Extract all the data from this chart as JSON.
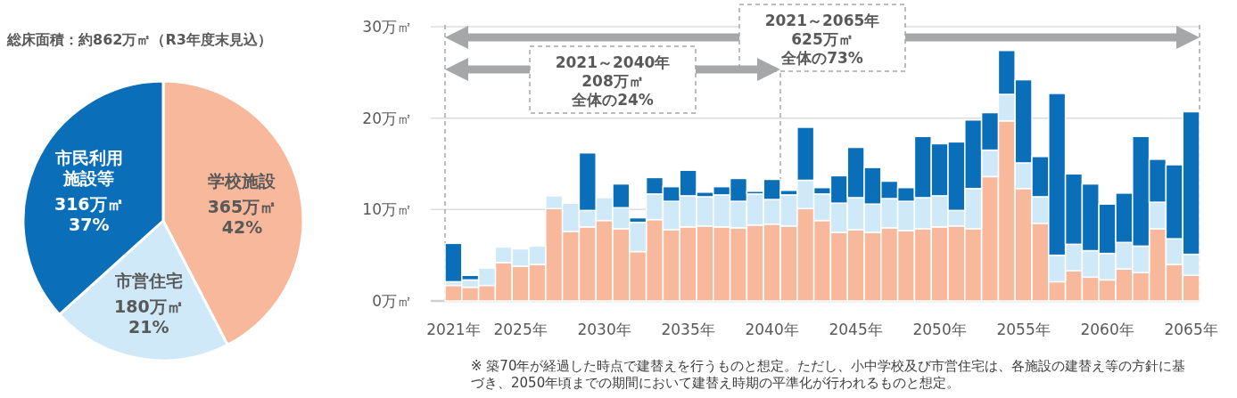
{
  "chart_data": [
    {
      "type": "pie",
      "title": "総床面積：約862万㎡（R3年度末見込）",
      "categories": [
        "学校施設",
        "市営住宅",
        "市民利用施設等"
      ],
      "values": [
        365,
        180,
        316
      ],
      "value_labels": [
        "365万㎡ 42%",
        "180万㎡ 21%",
        "316万㎡ 37%"
      ],
      "colors": [
        "#f8b89b",
        "#cfe9f9",
        "#0a6fb8"
      ]
    },
    {
      "type": "bar",
      "stacked": true,
      "x": [
        2021,
        2022,
        2023,
        2024,
        2025,
        2026,
        2027,
        2028,
        2029,
        2030,
        2031,
        2032,
        2033,
        2034,
        2035,
        2036,
        2037,
        2038,
        2039,
        2040,
        2041,
        2042,
        2043,
        2044,
        2045,
        2046,
        2047,
        2048,
        2049,
        2050,
        2051,
        2052,
        2053,
        2054,
        2055,
        2056,
        2057,
        2058,
        2059,
        2060,
        2061,
        2062,
        2063,
        2064,
        2065
      ],
      "series": [
        {
          "color": "#f8b89b",
          "values": [
            1.7,
            1.5,
            1.7,
            4.2,
            3.8,
            4.0,
            10.1,
            7.6,
            8.1,
            8.8,
            7.9,
            5.4,
            8.9,
            7.8,
            8.1,
            8.2,
            8.1,
            8.0,
            8.3,
            8.4,
            8.2,
            10.1,
            8.8,
            7.5,
            7.8,
            7.5,
            8.0,
            7.7,
            7.9,
            8.1,
            8.2,
            7.9,
            13.6,
            19.7,
            12.3,
            8.5,
            2.1,
            3.3,
            2.6,
            2.3,
            3.5,
            3.1,
            7.9,
            4.0,
            2.8
          ]
        },
        {
          "color": "#cfe9f9",
          "values": [
            0.4,
            0.8,
            1.9,
            1.7,
            1.9,
            2.0,
            1.4,
            3.1,
            1.8,
            2.5,
            2.3,
            3.2,
            2.8,
            3.1,
            3.4,
            3.2,
            3.5,
            2.9,
            3.4,
            2.7,
            3.4,
            3.1,
            2.9,
            3.2,
            3.5,
            3.1,
            3.2,
            3.2,
            3.4,
            3.4,
            1.7,
            4.4,
            2.9,
            2.9,
            2.8,
            2.9,
            2.9,
            2.9,
            2.9,
            2.9,
            2.9,
            2.9,
            2.9,
            2.8,
            2.3
          ]
        },
        {
          "color": "#0a6fb8",
          "values": [
            4.2,
            0.5,
            0,
            0,
            0,
            0,
            0,
            0,
            6.3,
            0,
            2.6,
            0.5,
            1.8,
            1.6,
            2.8,
            0.5,
            0.9,
            2.5,
            0.3,
            2.2,
            0.5,
            5.8,
            0.7,
            3.0,
            5.5,
            4.0,
            1.9,
            1.5,
            6.7,
            5.7,
            7.5,
            7.5,
            4.1,
            4.8,
            9.1,
            4.4,
            17.7,
            7.7,
            7.3,
            5.4,
            5.4,
            12.0,
            4.7,
            8.1,
            15.6
          ]
        }
      ],
      "xlim": [
        2020.5,
        2065.5
      ],
      "xticks": [
        {
          "value": 2021,
          "label": "2021年"
        },
        {
          "value": 2025,
          "label": "2025年"
        },
        {
          "value": 2030,
          "label": "2030年"
        },
        {
          "value": 2035,
          "label": "2035年"
        },
        {
          "value": 2040,
          "label": "2040年"
        },
        {
          "value": 2045,
          "label": "2045年"
        },
        {
          "value": 2050,
          "label": "2050年"
        },
        {
          "value": 2055,
          "label": "2055年"
        },
        {
          "value": 2060,
          "label": "2060年"
        },
        {
          "value": 2065,
          "label": "2065年"
        }
      ],
      "ylim": [
        0,
        30
      ],
      "yticks": [
        {
          "value": 0,
          "label": "0万㎡"
        },
        {
          "value": 10,
          "label": "10万㎡"
        },
        {
          "value": 20,
          "label": "20万㎡"
        },
        {
          "value": 30,
          "label": "30万㎡"
        }
      ],
      "grid": "y",
      "ref_lines": [
        {
          "axis": "x",
          "value": 2020.5,
          "color": "#a6a6a6",
          "line_style": "dashed"
        },
        {
          "axis": "x",
          "value": 2040.5,
          "color": "#a6a6a6",
          "line_style": "dashed"
        },
        {
          "axis": "x",
          "value": 2065.5,
          "color": "#a6a6a6",
          "line_style": "dashed"
        }
      ],
      "annotations": [
        "2021～2040年",
        "208万㎡",
        "全体の24%",
        "2021～2065年",
        "625万㎡",
        "全体の73%",
        "※ 築70年が経過した時点で建替えを行うものと想定。ただし、小中学校及び市営住宅は、各施設の建替え等の方針に基づき、2050年頃までの期間において建替え時期の平準化が行われるものと想定。"
      ]
    }
  ]
}
